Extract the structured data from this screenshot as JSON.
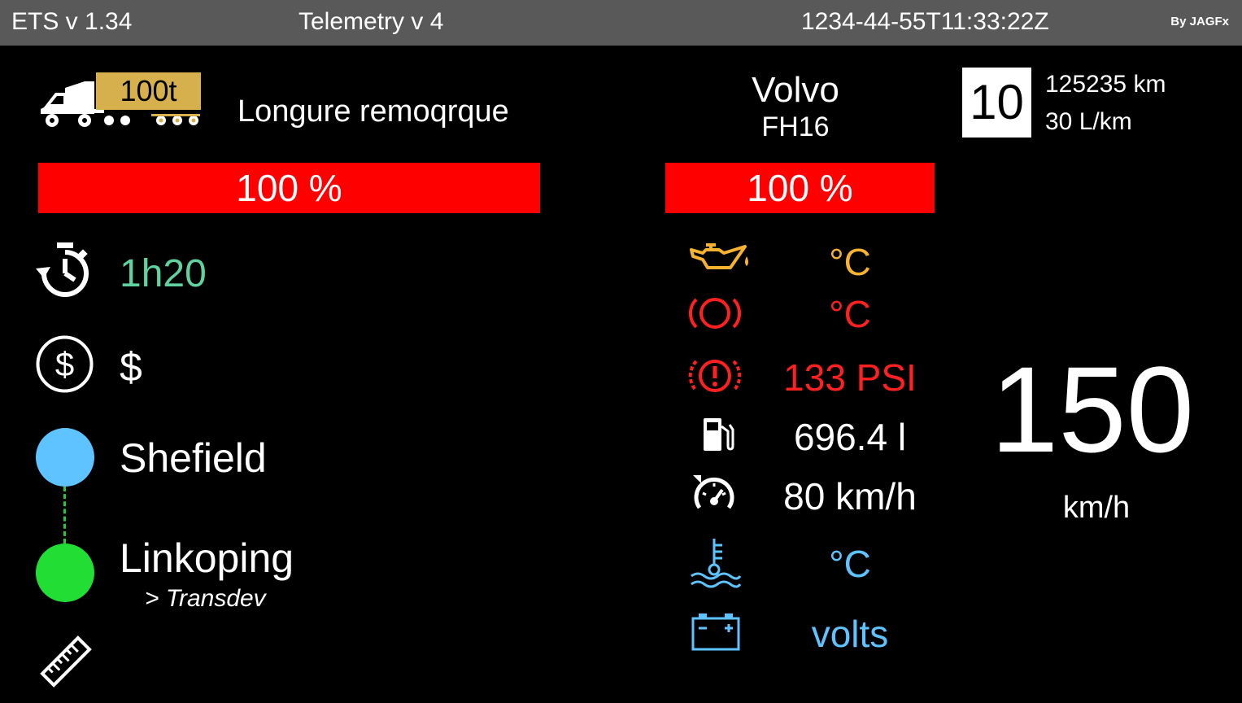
{
  "topbar": {
    "app_title": "ETS v 1.34",
    "middle_title": "Telemetry v 4",
    "timestamp": "1234-44-55T11:33:22Z",
    "byline": "By JAGFx"
  },
  "trailer": {
    "weight": "100t",
    "label": "Longure remoqrque",
    "condition_text": "100 %",
    "condition_pct": 100
  },
  "truck": {
    "brand": "Volvo",
    "model": "FH16",
    "condition_text": "100 %",
    "condition_pct": 100,
    "gear": "10",
    "odometer": "125235 km",
    "consumption": "30 L/km"
  },
  "job": {
    "remaining_time": "1h20",
    "income": "$",
    "origin_city": "Shefield",
    "destination_city": "Linkoping",
    "destination_company": "> Transdev"
  },
  "gauges": {
    "oil_temp": "°C",
    "brake_temp": "°C",
    "air_pressure": "133 PSI",
    "fuel": "696.4 l",
    "cruise_control": "80 km/h",
    "water_temp": "°C",
    "battery": "volts"
  },
  "speed": {
    "value": "150",
    "unit": "km/h"
  },
  "icons": {
    "truck": "truck-icon",
    "timer": "stopwatch-icon",
    "money": "dollar-circle-icon",
    "distance": "ruler-icon",
    "oil": "oil-can-icon",
    "brake": "brake-icon",
    "air": "brake-warning-icon",
    "fuel": "fuel-pump-icon",
    "cruise": "cruise-control-icon",
    "water": "coolant-temp-icon",
    "battery": "battery-icon"
  },
  "colors": {
    "bar_red": "#ff0000",
    "weight_badge": "#d6b04c",
    "oil": "#f7b22f",
    "alert": "#ff2020",
    "cool": "#5ec3ff",
    "time": "#5fd2a0",
    "origin_dot": "#5ec3ff",
    "destination_dot": "#22dd33"
  }
}
